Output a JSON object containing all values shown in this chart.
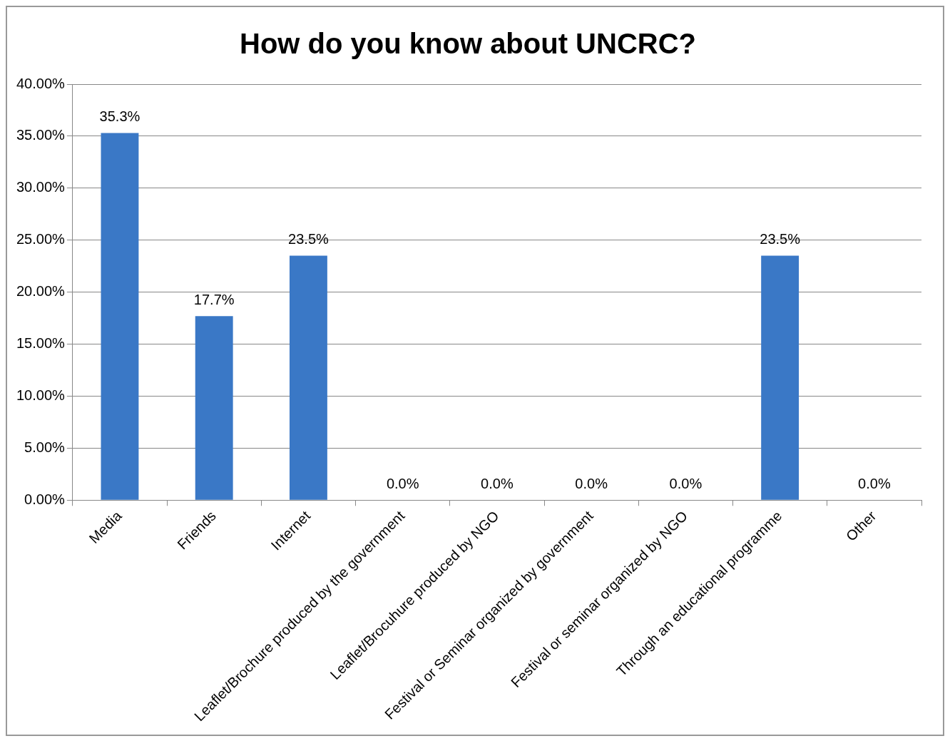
{
  "chart_data": {
    "type": "bar",
    "title": "How do you know about UNCRC?",
    "categories": [
      "Media",
      "Friends",
      "Internet",
      "Leaflet/Brochure produced by the government",
      "Leaflet/Brocuhure produced by NGO",
      "Festival or Seminar organized by government",
      "Festival or seminar organized by NGO",
      "Through an educational programme",
      "Other"
    ],
    "values": [
      35.3,
      17.7,
      23.5,
      0,
      0,
      0,
      0,
      23.5,
      0
    ],
    "value_labels": [
      "35.3%",
      "17.7%",
      "23.5%",
      "0.0%",
      "0.0%",
      "0.0%",
      "0.0%",
      "23.5%",
      "0.0%"
    ],
    "color": "#3a78c6",
    "ylim": [
      0,
      40
    ],
    "yticks": [
      {
        "value": 0,
        "label": "0.00%"
      },
      {
        "value": 5,
        "label": "5.00%"
      },
      {
        "value": 10,
        "label": "10.00%"
      },
      {
        "value": 15,
        "label": "15.00%"
      },
      {
        "value": 20,
        "label": "20.00%"
      },
      {
        "value": 25,
        "label": "25.00%"
      },
      {
        "value": 30,
        "label": "30.00%"
      },
      {
        "value": 35,
        "label": "35.00%"
      },
      {
        "value": 40,
        "label": "40.00%"
      }
    ],
    "grid": "y",
    "legend": false
  }
}
